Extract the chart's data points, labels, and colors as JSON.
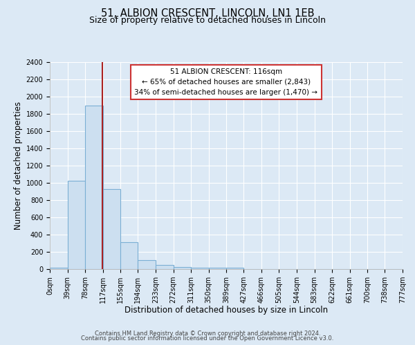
{
  "title_line1": "51, ALBION CRESCENT, LINCOLN, LN1 1EB",
  "title_line2": "Size of property relative to detached houses in Lincoln",
  "xlabel": "Distribution of detached houses by size in Lincoln",
  "ylabel": "Number of detached properties",
  "bin_edges": [
    0,
    39,
    78,
    117,
    155,
    194,
    233,
    272,
    311,
    350,
    389,
    427,
    466,
    505,
    544,
    583,
    622,
    661,
    700,
    738,
    777
  ],
  "bin_labels": [
    "0sqm",
    "39sqm",
    "78sqm",
    "117sqm",
    "155sqm",
    "194sqm",
    "233sqm",
    "272sqm",
    "311sqm",
    "350sqm",
    "389sqm",
    "427sqm",
    "466sqm",
    "505sqm",
    "544sqm",
    "583sqm",
    "622sqm",
    "661sqm",
    "700sqm",
    "738sqm",
    "777sqm"
  ],
  "bar_heights": [
    20,
    1025,
    1900,
    930,
    310,
    105,
    45,
    25,
    20,
    20,
    20,
    0,
    0,
    0,
    0,
    0,
    0,
    0,
    0,
    0
  ],
  "bar_color": "#ccdff0",
  "bar_edge_color": "#7bafd4",
  "property_size": 116,
  "red_line_color": "#aa2222",
  "ylim": [
    0,
    2400
  ],
  "yticks": [
    0,
    200,
    400,
    600,
    800,
    1000,
    1200,
    1400,
    1600,
    1800,
    2000,
    2200,
    2400
  ],
  "annotation_title": "51 ALBION CRESCENT: 116sqm",
  "annotation_line2": "← 65% of detached houses are smaller (2,843)",
  "annotation_line3": "34% of semi-detached houses are larger (1,470) →",
  "annotation_box_color": "#ffffff",
  "annotation_border_color": "#cc3333",
  "footer_line1": "Contains HM Land Registry data © Crown copyright and database right 2024.",
  "footer_line2": "Contains public sector information licensed under the Open Government Licence v3.0.",
  "background_color": "#dce9f5",
  "plot_bg_color": "#dce9f5",
  "grid_color": "#ffffff",
  "title_fontsize": 10.5,
  "subtitle_fontsize": 9,
  "axis_label_fontsize": 8.5,
  "tick_fontsize": 7,
  "annotation_fontsize": 7.5,
  "footer_fontsize": 6
}
